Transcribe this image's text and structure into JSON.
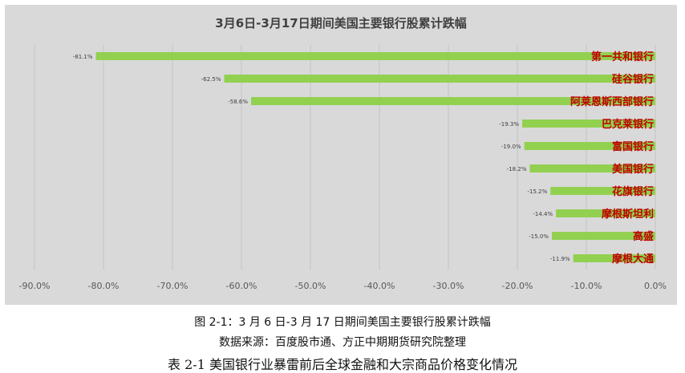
{
  "figure": {
    "caption": "图 2-1：3 月 6 日-3 月 17 日期间美国主要银行股累计跌幅",
    "source": "数据来源：百度股市通、方正中期期货研究院整理",
    "next_caption": "表 2-1 美国银行业暴雷前后全球金融和大宗商品价格变化情况"
  },
  "colors": {
    "panel_bg": "#d9d9d9",
    "bar": "#92d050",
    "label": "#c00000",
    "grid": "#c4c4c4",
    "title": "#404040",
    "tick": "#595959"
  },
  "chart_data": {
    "type": "bar",
    "orientation": "horizontal",
    "title": "3月6日-3月17日期间美国主要银行股累计跌幅",
    "categories": [
      "第一共和银行",
      "硅谷银行",
      "阿莱恩斯西部银行",
      "巴克莱银行",
      "富国银行",
      "美国银行",
      "花旗银行",
      "摩根斯坦利",
      "高盛",
      "摩根大通"
    ],
    "values": [
      -81.1,
      -62.5,
      -58.6,
      -19.3,
      -19.0,
      -18.2,
      -15.2,
      -14.4,
      -15.0,
      -11.9
    ],
    "data_labels": [
      "-81.1%",
      "-62.5%",
      "-58.6%",
      "-19.3%",
      "-19.0%",
      "-18.2%",
      "-15.2%",
      "-14.4%",
      "-15.0%",
      "-11.9%"
    ],
    "xlim": [
      -90,
      0
    ],
    "x_ticks": [
      -90,
      -80,
      -70,
      -60,
      -50,
      -40,
      -30,
      -20,
      -10,
      0
    ],
    "x_tick_labels": [
      "-90.0%",
      "-80.0%",
      "-70.0%",
      "-60.0%",
      "-50.0%",
      "-40.0%",
      "-30.0%",
      "-20.0%",
      "-10.0%",
      "0.0%"
    ],
    "grid": true,
    "legend": "none",
    "category_labels_position": "inside-right"
  }
}
